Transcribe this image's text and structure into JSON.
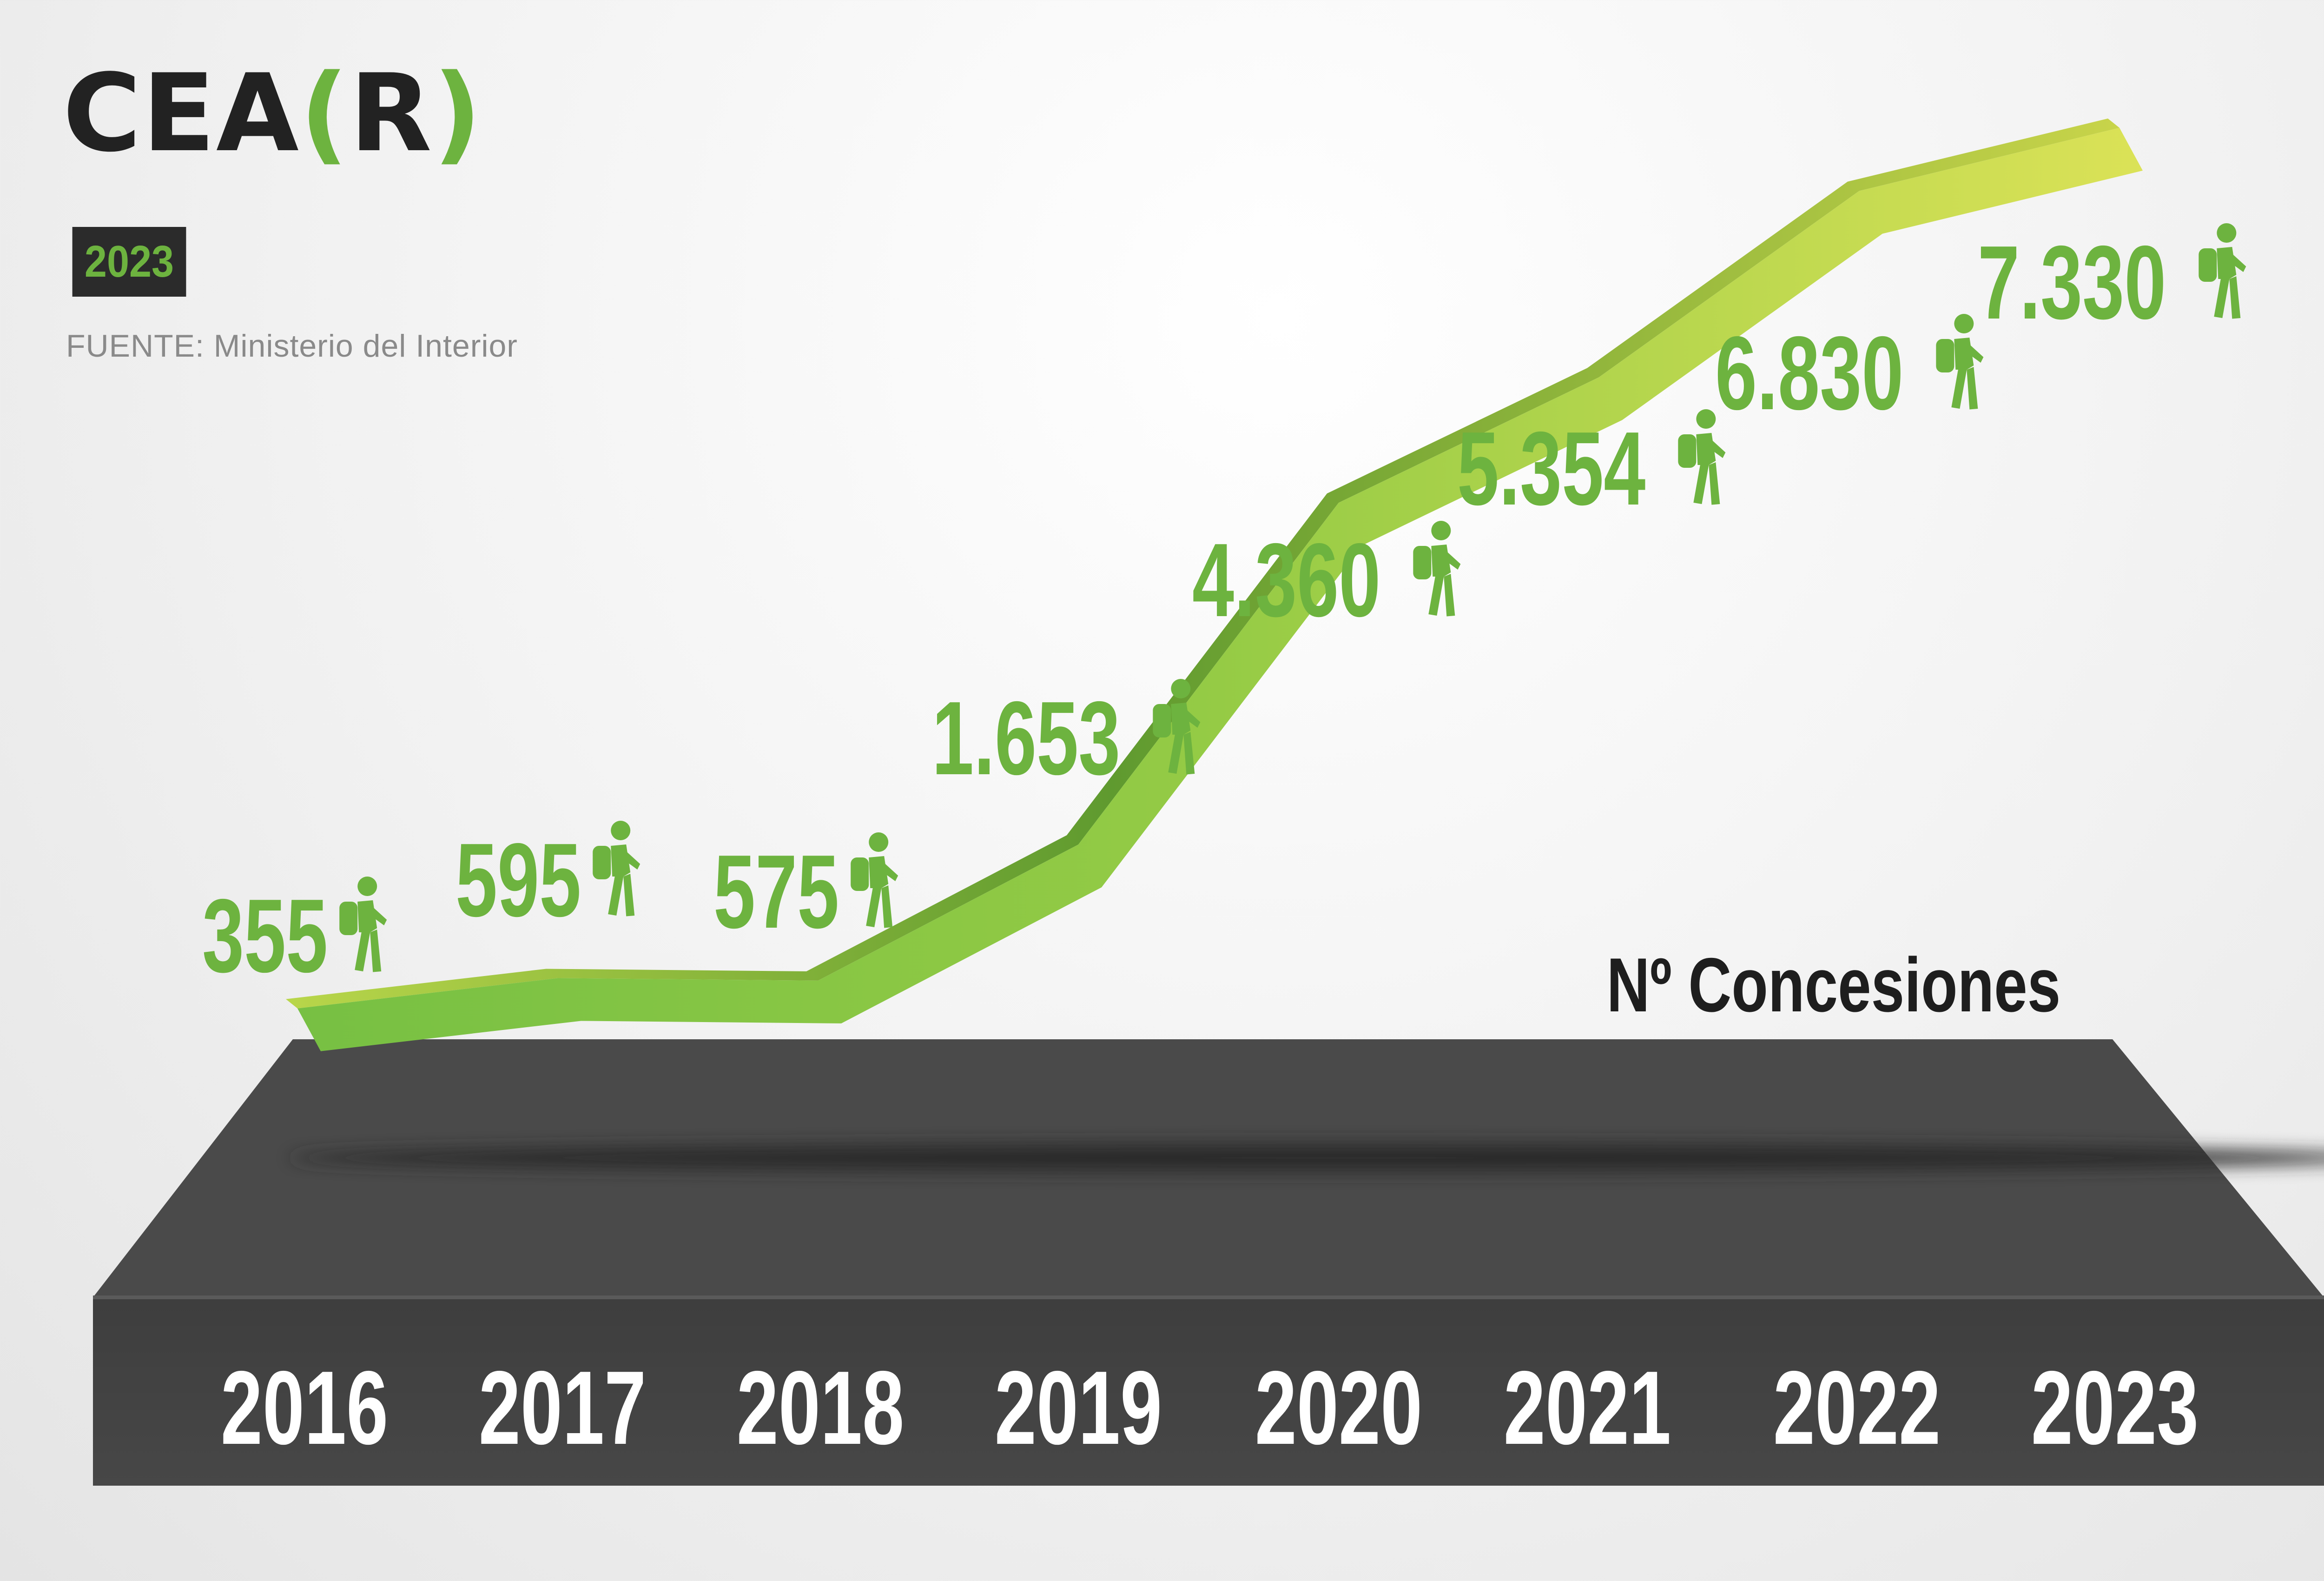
{
  "brand": {
    "prefix": "CEA",
    "open_bracket": "(",
    "letter": "R",
    "close_bracket": ")"
  },
  "year_badge": "2023",
  "source": "FUENTE: Ministerio del Interior",
  "colors": {
    "accent_green": "#6db33f",
    "line_start": "#7ac142",
    "line_end": "#d9e25a",
    "platform": "#4a4a4a",
    "dark_text": "#222222"
  },
  "icon": "hiker-icon",
  "chart_data": {
    "type": "line",
    "x": [
      "2016",
      "2017",
      "2018",
      "2019",
      "2020",
      "2021",
      "2022",
      "2023"
    ],
    "values": [
      355,
      595,
      575,
      1653,
      4360,
      5354,
      6830,
      7330
    ],
    "value_labels": [
      "355",
      "595",
      "575",
      "1.653",
      "4.360",
      "5.354",
      "6.830",
      "7.330"
    ],
    "series": [
      {
        "name": "Nº Concesiones"
      }
    ],
    "legend_position": "right, above platform",
    "grid": false
  }
}
